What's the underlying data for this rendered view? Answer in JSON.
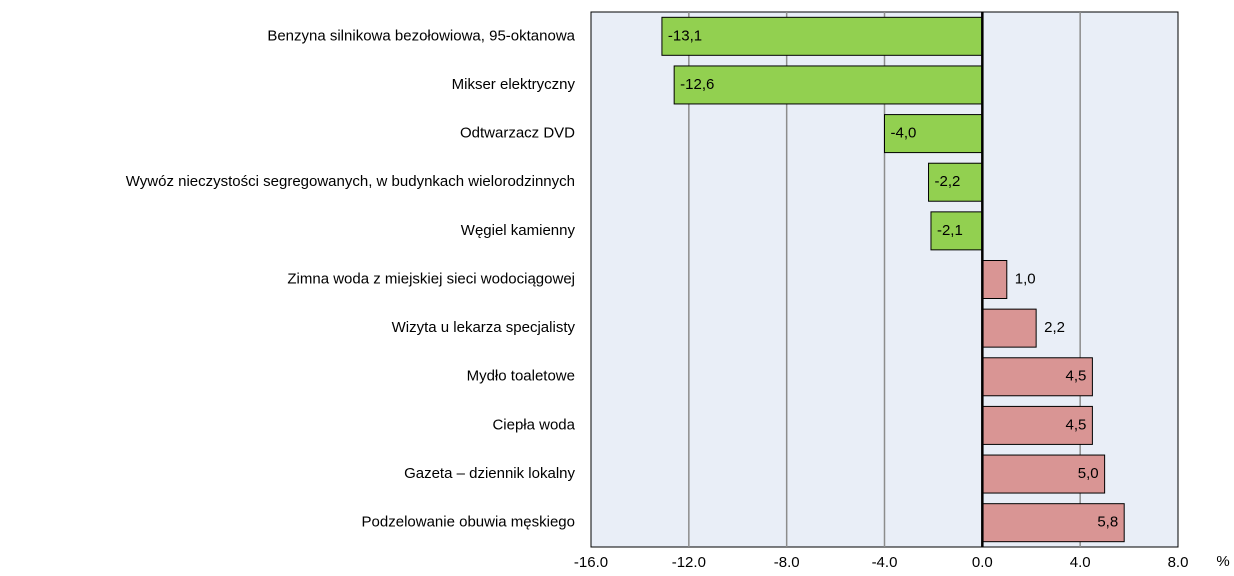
{
  "chart_data": {
    "type": "barh",
    "categories": [
      "Benzyna silnikowa bezołowiowa, 95-oktanowa",
      "Mikser elektryczny",
      "Odtwarzacz DVD",
      "Wywóz nieczystości  segregowanych, w budynkach wielorodzinnych",
      "Węgiel kamienny",
      "Zimna woda z miejskiej sieci wodociągowej",
      "Wizyta u lekarza specjalisty",
      "Mydło toaletowe",
      "Ciepła woda",
      "Gazeta – dziennik lokalny",
      "Podzelowanie obuwia męskiego"
    ],
    "values": [
      -13.1,
      -12.6,
      -4.0,
      -2.2,
      -2.1,
      1.0,
      2.2,
      4.5,
      4.5,
      5.0,
      5.8
    ],
    "value_labels": [
      "-13,1",
      "-12,6",
      "-4,0",
      "-2,2",
      "-2,1",
      "1,0",
      "2,2",
      "4,5",
      "4,5",
      "5,0",
      "5,8"
    ],
    "colors": [
      "#92d050",
      "#92d050",
      "#92d050",
      "#92d050",
      "#92d050",
      "#d99594",
      "#d99594",
      "#d99594",
      "#d99594",
      "#d99594",
      "#d99594"
    ],
    "x_label": "%",
    "xlim": [
      -16,
      8
    ],
    "xticks": [
      {
        "value": -16,
        "label": "-16.0"
      },
      {
        "value": -12,
        "label": "-12.0"
      },
      {
        "value": -8,
        "label": "-8.0"
      },
      {
        "value": -4,
        "label": "-4.0"
      },
      {
        "value": 0,
        "label": "0.0"
      },
      {
        "value": 4,
        "label": "4.0"
      },
      {
        "value": 8,
        "label": "8.0"
      }
    ],
    "grid": true
  }
}
